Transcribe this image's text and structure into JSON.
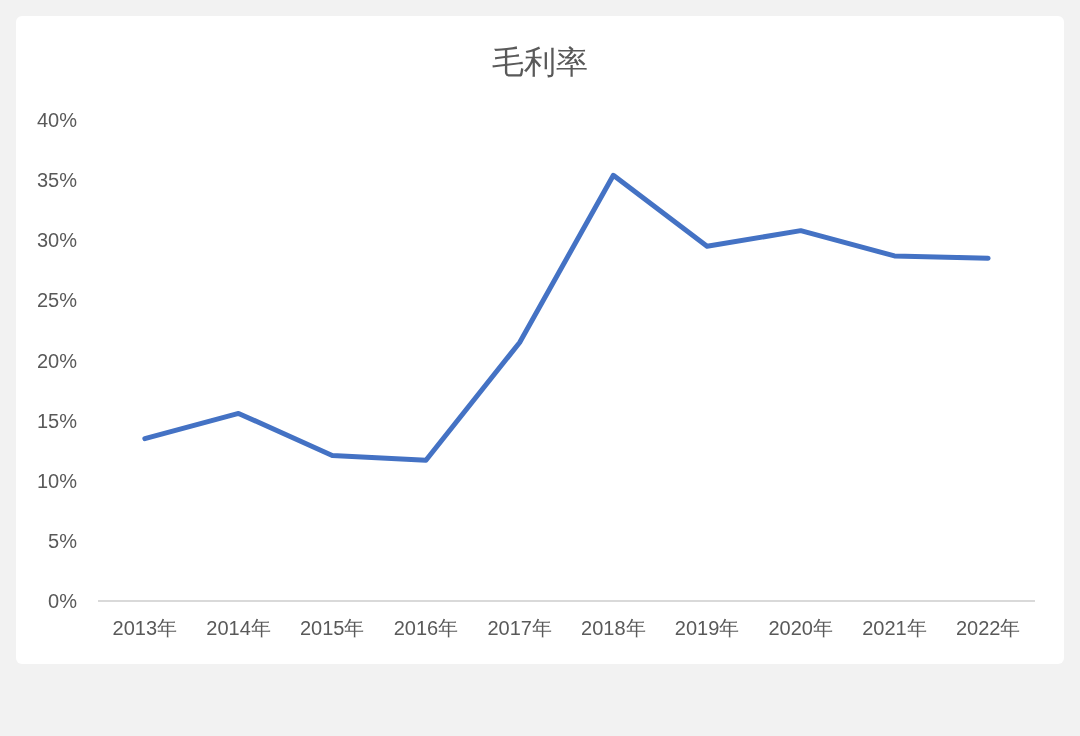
{
  "chart_data": {
    "type": "line",
    "title": "毛利率",
    "categories": [
      "2013年",
      "2014年",
      "2015年",
      "2016年",
      "2017年",
      "2018年",
      "2019年",
      "2020年",
      "2021年",
      "2022年"
    ],
    "series": [
      {
        "color": "#4472c4",
        "values": [
          13.5,
          15.6,
          12.1,
          11.7,
          21.5,
          35.4,
          29.5,
          30.8,
          28.7,
          28.5
        ]
      }
    ],
    "ylim": [
      0,
      40
    ],
    "yticks": [
      {
        "value": 0,
        "label": "0%"
      },
      {
        "value": 5,
        "label": "5%"
      },
      {
        "value": 10,
        "label": "10%"
      },
      {
        "value": 15,
        "label": "15%"
      },
      {
        "value": 20,
        "label": "20%"
      },
      {
        "value": 25,
        "label": "25%"
      },
      {
        "value": 30,
        "label": "30%"
      },
      {
        "value": 35,
        "label": "35%"
      },
      {
        "value": 40,
        "label": "40%"
      }
    ],
    "grid": false,
    "marker": "none",
    "line_style": "solid"
  }
}
